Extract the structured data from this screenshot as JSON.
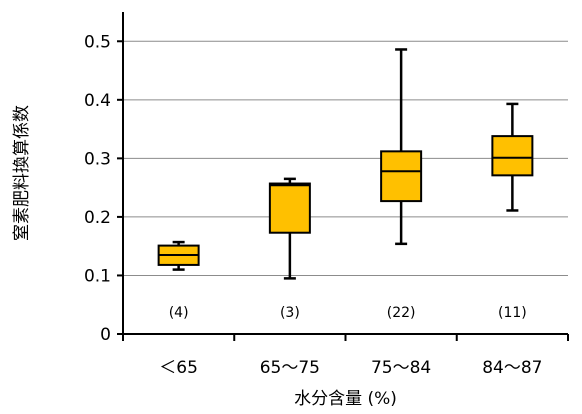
{
  "chart_data": {
    "type": "box",
    "categories": [
      "＜65",
      "65〜75",
      "75〜84",
      "84〜87"
    ],
    "boxes": [
      {
        "min": 0.11,
        "q1": 0.118,
        "median": 0.135,
        "q3": 0.151,
        "max": 0.157,
        "n_label": "(4)"
      },
      {
        "min": 0.095,
        "q1": 0.173,
        "median": 0.254,
        "q3": 0.257,
        "max": 0.265,
        "n_label": "(3)"
      },
      {
        "min": 0.154,
        "q1": 0.227,
        "median": 0.278,
        "q3": 0.312,
        "max": 0.486,
        "n_label": "(22)"
      },
      {
        "min": 0.211,
        "q1": 0.271,
        "median": 0.301,
        "q3": 0.338,
        "max": 0.393,
        "n_label": "(11)"
      }
    ],
    "xlabel": "水分含量 (%)",
    "ylabel": "窒素肥料換算係数",
    "ylim": [
      0,
      0.55
    ],
    "yticks": [
      "0",
      "0.1",
      "0.2",
      "0.3",
      "0.4",
      "0.5"
    ],
    "ytick_values": [
      0,
      0.1,
      0.2,
      0.3,
      0.4,
      0.5
    ],
    "grid": true,
    "box_color": "#FFC000"
  }
}
